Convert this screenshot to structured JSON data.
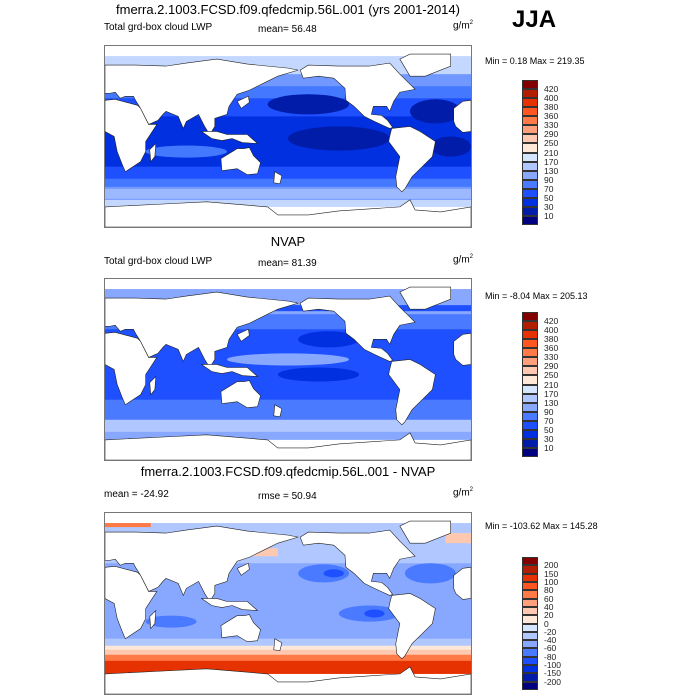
{
  "season": "JJA",
  "panels": [
    {
      "title": "fmerra.2.1003.FCSD.f09.qfedcmip.56L.001 (yrs 2001-2014)",
      "left_label": "Total grd-box cloud LWP",
      "center_label": "mean=  56.48",
      "units": "g/m",
      "units_exp": "2",
      "minmax": "Min =   0.18 Max = 219.35",
      "colorbar_levels": [
        "420",
        "400",
        "380",
        "360",
        "330",
        "290",
        "250",
        "210",
        "170",
        "130",
        "90",
        "70",
        "50",
        "30",
        "10"
      ],
      "map_type": "model"
    },
    {
      "title": "NVAP",
      "left_label": "Total grd-box cloud LWP",
      "center_label": "mean=  81.39",
      "units": "g/m",
      "units_exp": "2",
      "minmax": "Min =  -8.04 Max = 205.13",
      "colorbar_levels": [
        "420",
        "400",
        "380",
        "360",
        "330",
        "290",
        "250",
        "210",
        "170",
        "130",
        "90",
        "70",
        "50",
        "30",
        "10"
      ],
      "map_type": "obs"
    },
    {
      "title": "fmerra.2.1003.FCSD.f09.qfedcmip.56L.001 - NVAP",
      "left_label": "mean = -24.92",
      "center_label": "rmse =  50.94",
      "units": "g/m",
      "units_exp": "2",
      "minmax": "Min = -103.62 Max = 145.28",
      "colorbar_levels": [
        "200",
        "150",
        "100",
        "80",
        "60",
        "40",
        "20",
        "0",
        "-20",
        "-40",
        "-60",
        "-80",
        "-100",
        "-150",
        "-200"
      ],
      "map_type": "diff"
    }
  ],
  "colorbar_colors": [
    "#820000",
    "#B41E00",
    "#E63200",
    "#FF5520",
    "#FF7A46",
    "#FFA07C",
    "#FFC8B0",
    "#FFE8D8",
    "#D4E6FF",
    "#B0C8FF",
    "#88A8FF",
    "#4A7AFF",
    "#1E50FF",
    "#0030E0",
    "#001CA8",
    "#000080"
  ]
}
